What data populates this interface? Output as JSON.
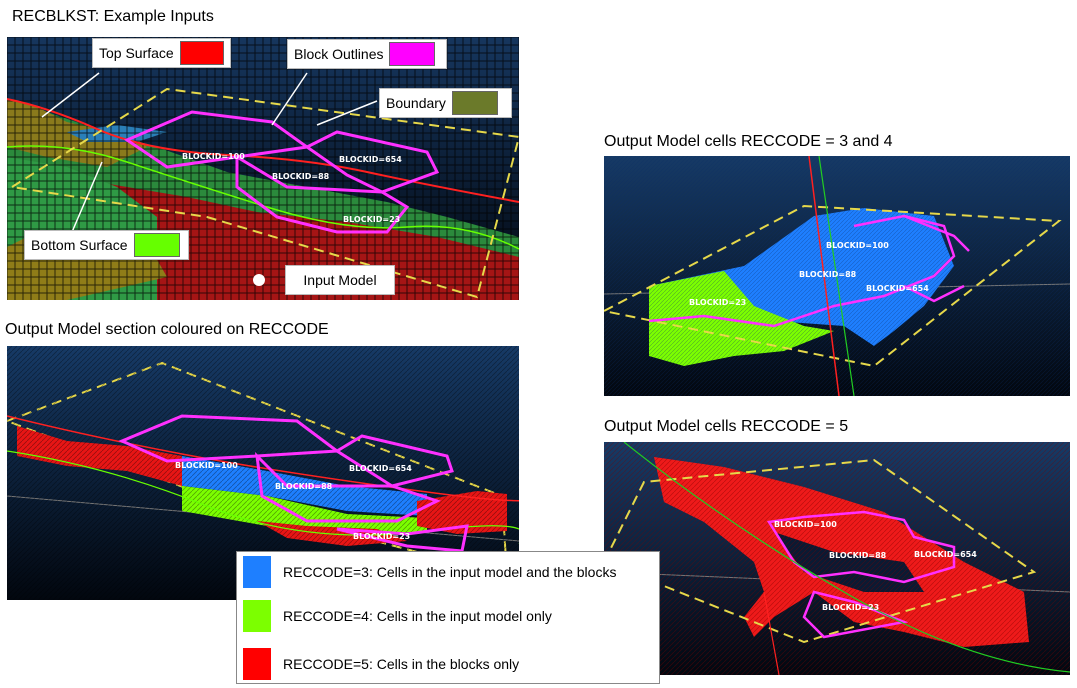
{
  "titles": {
    "inputs": "RECBLKST: Example Inputs",
    "section": "Output Model section coloured on RECCODE",
    "output34": "Output Model cells RECCODE = 3 and 4",
    "output5": "Output Model cells RECCODE = 5"
  },
  "callouts": {
    "top_surface": {
      "label": "Top Surface",
      "color": "#ff0000"
    },
    "block_outlines": {
      "label": "Block Outlines",
      "color": "#ff00ff"
    },
    "boundary": {
      "label": "Boundary",
      "color": "#6b7a2a"
    },
    "bottom_surface": {
      "label": "Bottom Surface",
      "color": "#66ff00"
    },
    "input_model": {
      "label": "Input Model"
    }
  },
  "block_ids": {
    "b100": "BLOCKID=100",
    "b654": "BLOCKID=654",
    "b88": "BLOCKID=88",
    "b23": "BLOCKID=23"
  },
  "legend": [
    {
      "label": "RECCODE=3: Cells in the input model and the blocks",
      "color": "#1e7fff"
    },
    {
      "label": "RECCODE=4: Cells in the input model only",
      "color": "#7cff00"
    },
    {
      "label": "RECCODE=5: Cells in the blocks only",
      "color": "#ff0000"
    }
  ]
}
